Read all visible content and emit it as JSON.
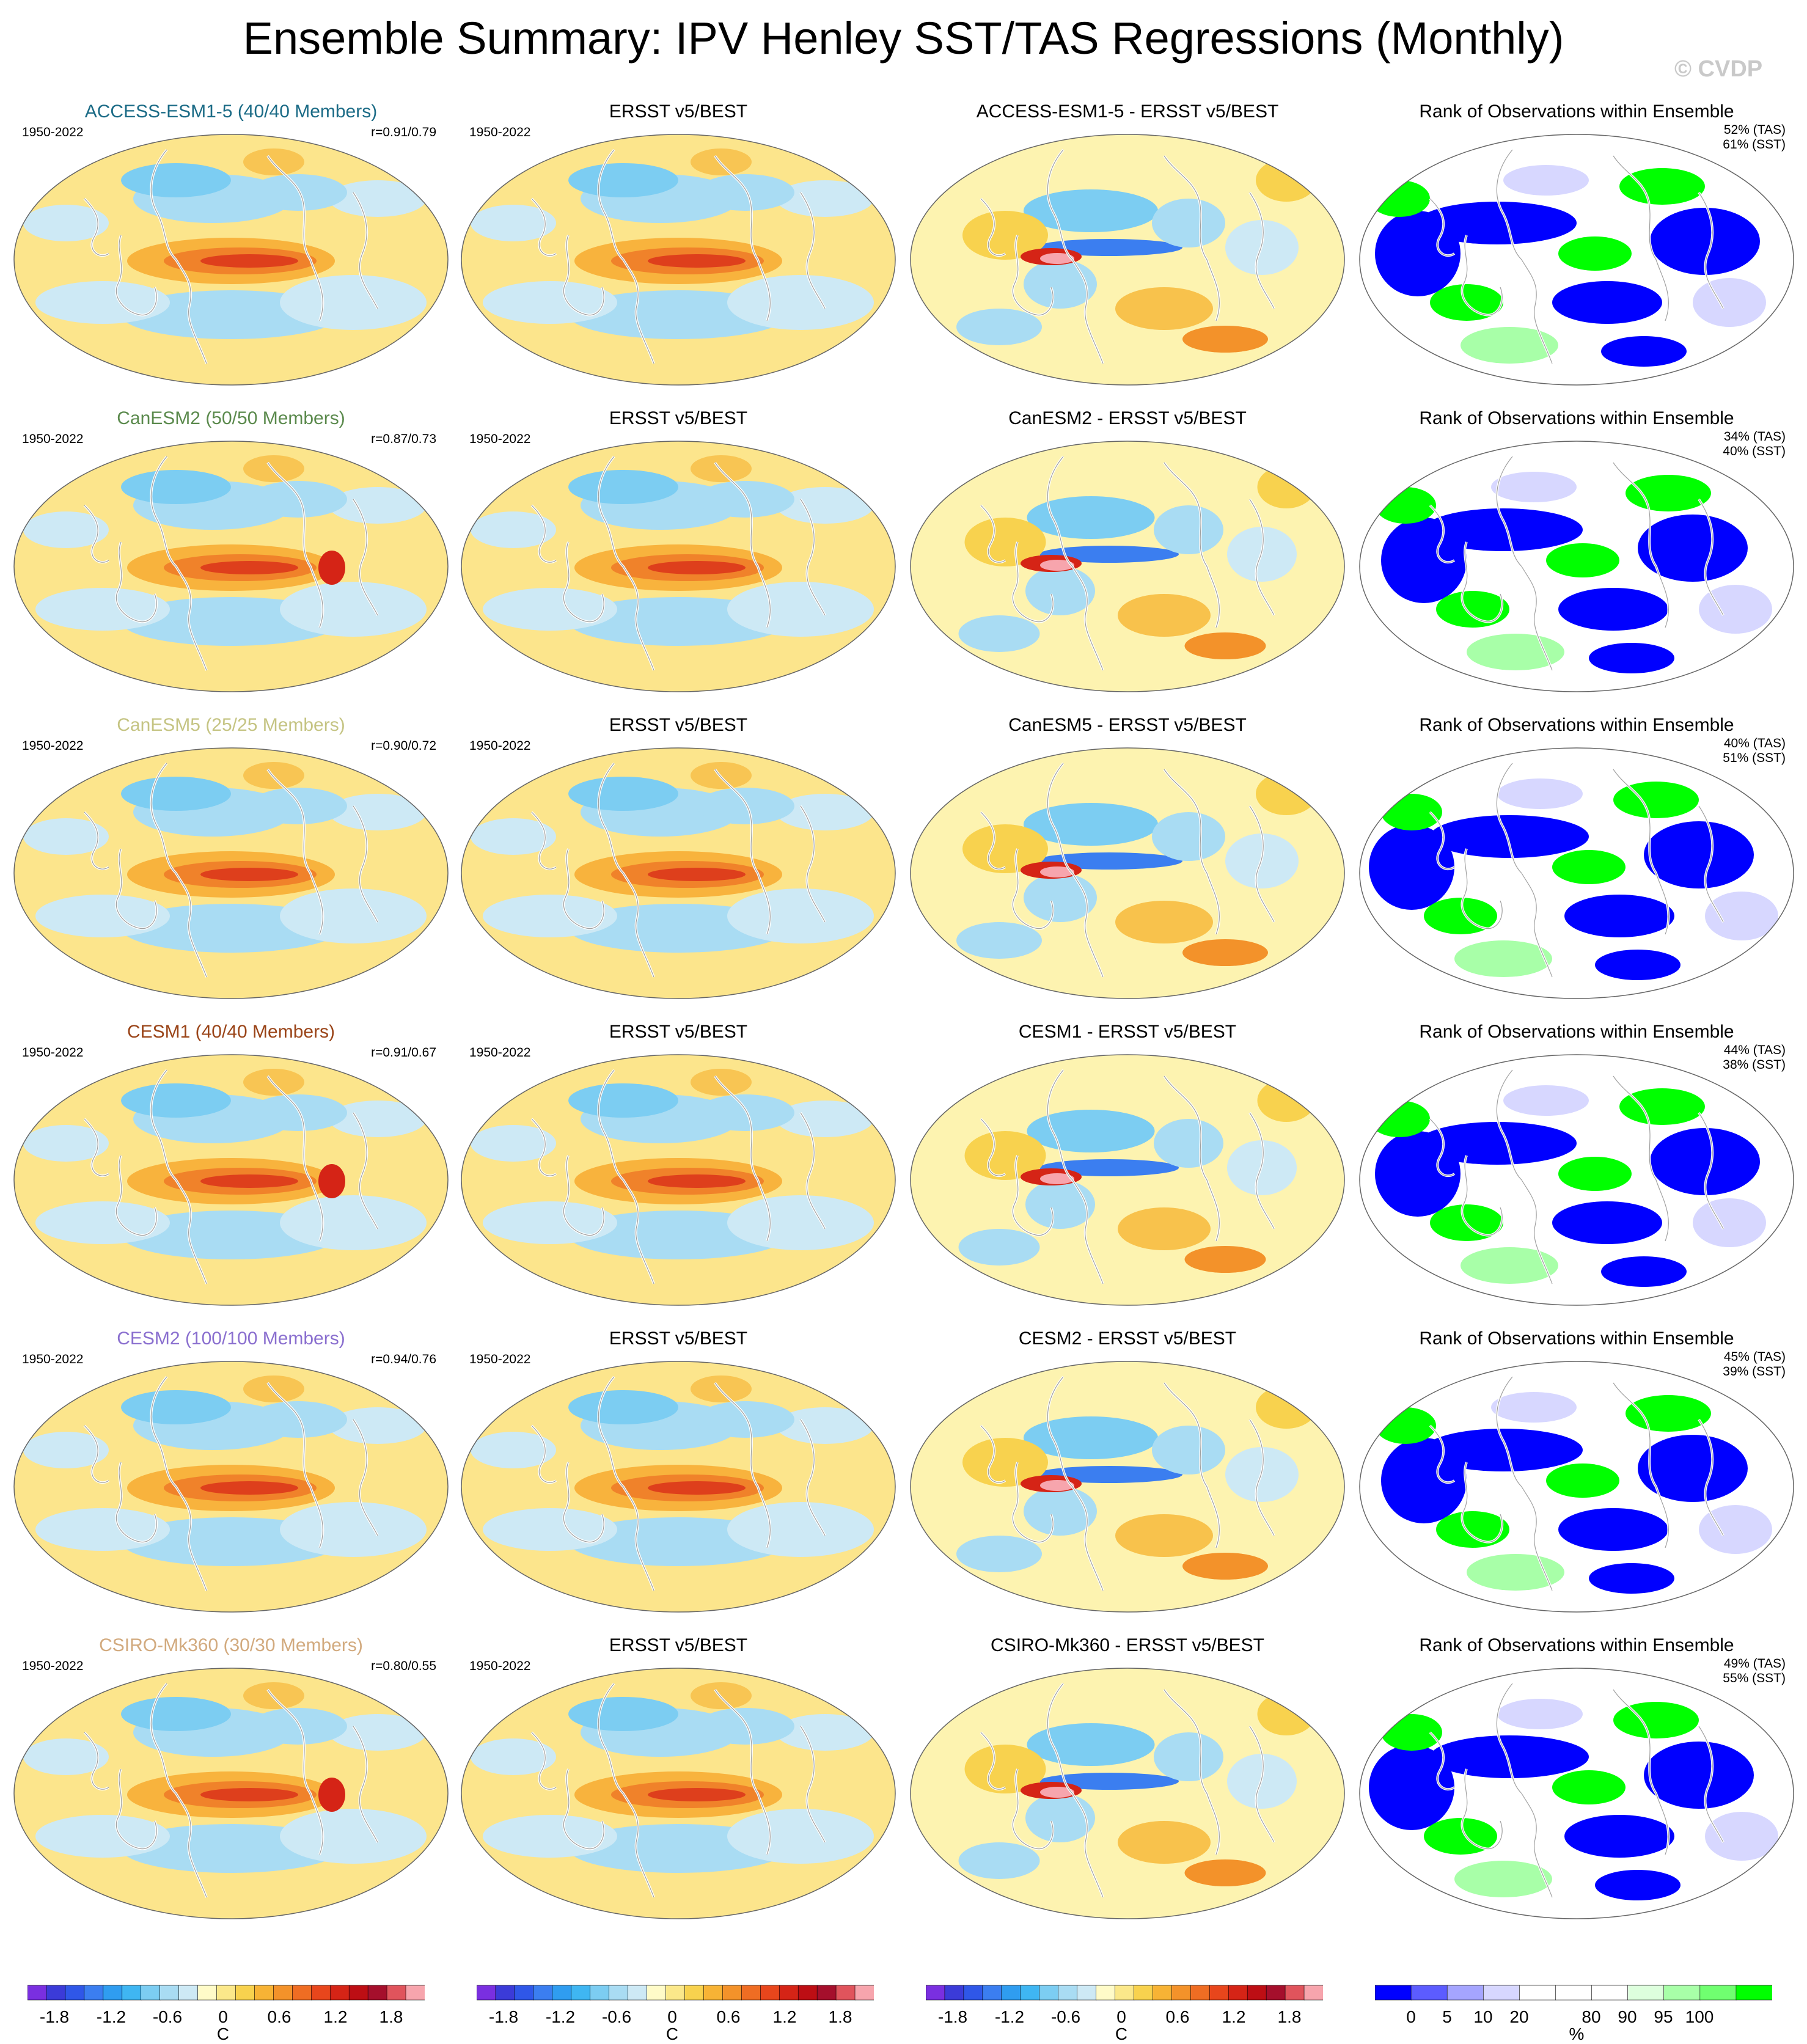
{
  "title": "Ensemble Summary: IPV Henley SST/TAS Regressions (Monthly)",
  "watermark": "© CVDP",
  "period": "1950-2022",
  "obs_title": "ERSST v5/BEST",
  "rank_title": "Rank of Observations within Ensemble",
  "rows": [
    {
      "model": "ACCESS-ESM1-5 (40/40 Members)",
      "color": "#1b6b86",
      "corr": "r=0.91/0.79",
      "diff_title": "ACCESS-ESM1-5 - ERSST v5/BEST",
      "tas": "52% (TAS)",
      "sst": "61% (SST)"
    },
    {
      "model": "CanESM2 (50/50 Members)",
      "color": "#5b8a4d",
      "corr": "r=0.87/0.73",
      "diff_title": "CanESM2 - ERSST v5/BEST",
      "tas": "34% (TAS)",
      "sst": "40% (SST)"
    },
    {
      "model": "CanESM5 (25/25 Members)",
      "color": "#c5c483",
      "corr": "r=0.90/0.72",
      "diff_title": "CanESM5 - ERSST v5/BEST",
      "tas": "40% (TAS)",
      "sst": "51% (SST)"
    },
    {
      "model": "CESM1 (40/40 Members)",
      "color": "#9a4418",
      "corr": "r=0.91/0.67",
      "diff_title": "CESM1 - ERSST v5/BEST",
      "tas": "44% (TAS)",
      "sst": "38% (SST)"
    },
    {
      "model": "CESM2 (100/100 Members)",
      "color": "#8a6fcf",
      "corr": "r=0.94/0.76",
      "diff_title": "CESM2 - ERSST v5/BEST",
      "tas": "45% (TAS)",
      "sst": "39% (SST)"
    },
    {
      "model": "CSIRO-Mk360 (30/30 Members)",
      "color": "#d2aa7e",
      "corr": "r=0.80/0.55",
      "diff_title": "CSIRO-Mk360 - ERSST v5/BEST",
      "tas": "49% (TAS)",
      "sst": "55% (SST)"
    }
  ],
  "temp_colorbar": {
    "ticks": [
      "-1.8",
      "-1.2",
      "-0.6",
      "0",
      "0.6",
      "1.2",
      "1.8"
    ],
    "unit": "C",
    "colors": [
      "#7a2fe0",
      "#3b3bd8",
      "#2f57e8",
      "#3b7ef0",
      "#2f9df0",
      "#3fb6f2",
      "#7ccdf2",
      "#a9dcf3",
      "#cde9f5",
      "#fffbc8",
      "#fbe88a",
      "#f8d24e",
      "#f7b335",
      "#f3922a",
      "#ef6d23",
      "#e8461c",
      "#d52416",
      "#bd0e14",
      "#a50f2c",
      "#e0545c",
      "#f7a5ad"
    ]
  },
  "rank_colorbar": {
    "ticks": [
      "0",
      "5",
      "10",
      "20",
      "80",
      "90",
      "95",
      "100"
    ],
    "unit": "%",
    "colors": [
      "#0000ff",
      "#5c5cff",
      "#a5a5ff",
      "#d7d7ff",
      "#ffffff",
      "#ffffff",
      "#ffffff",
      "#ddffdd",
      "#a8ffa8",
      "#70ff70",
      "#00ff00"
    ]
  }
}
